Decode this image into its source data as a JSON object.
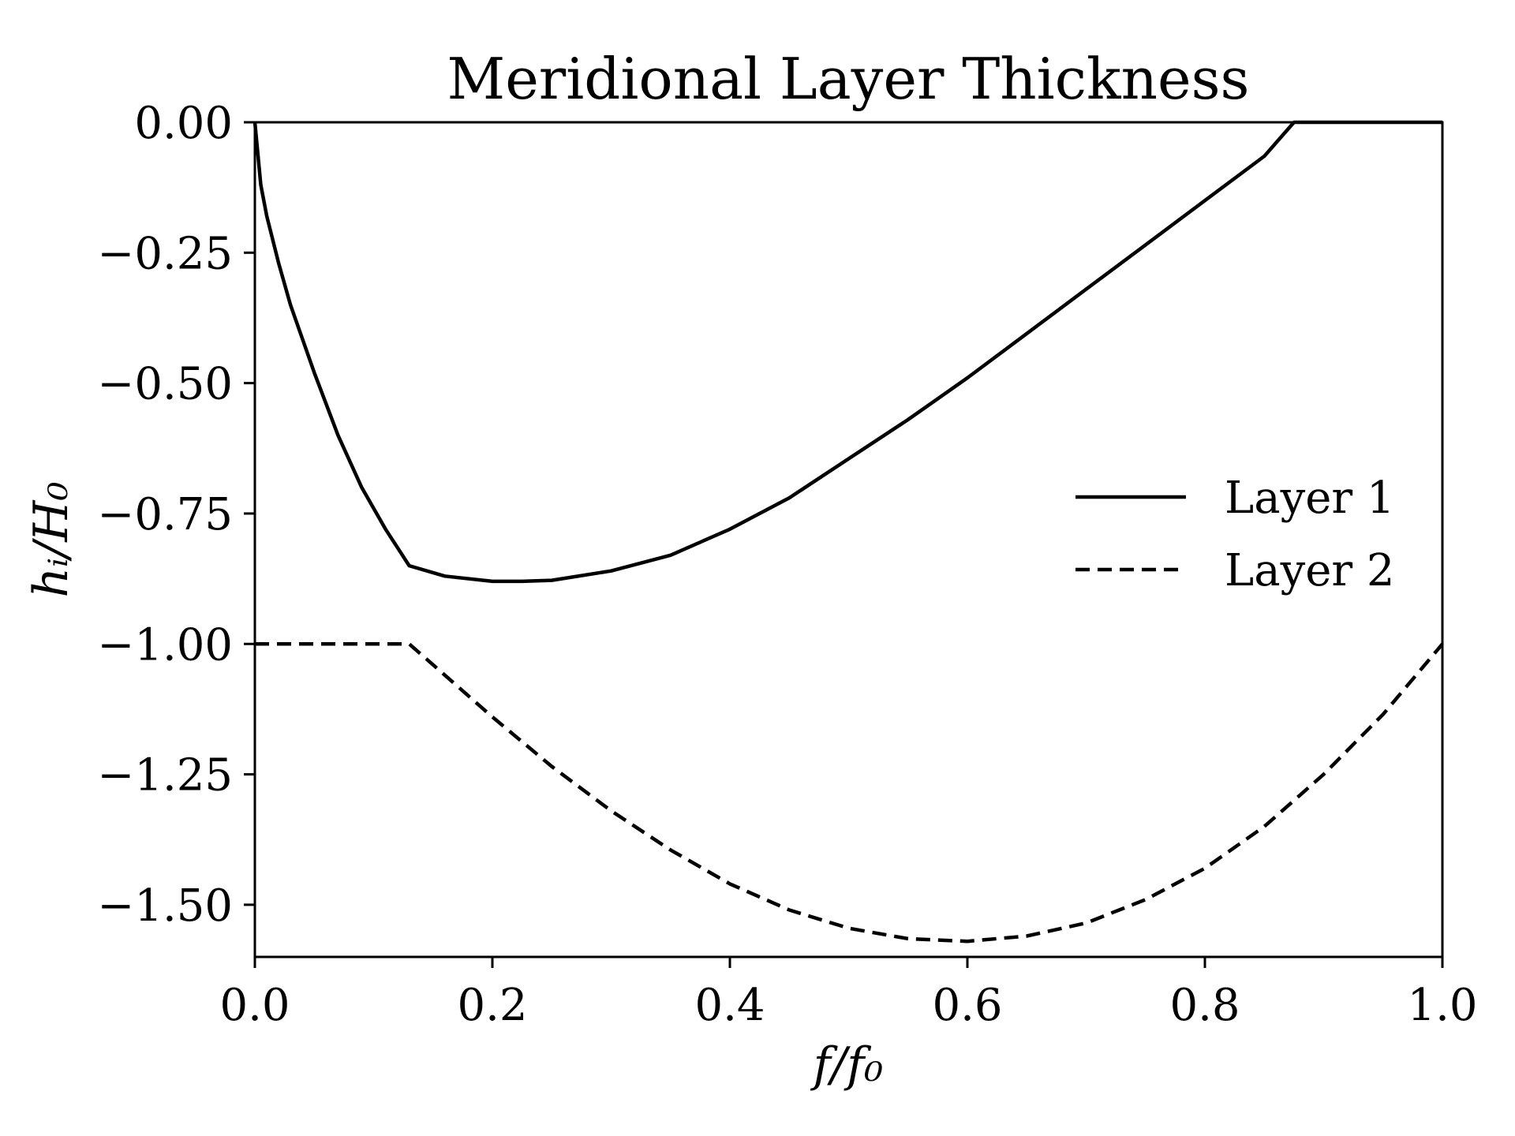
{
  "chart_data": {
    "type": "line",
    "title": "Meridional Layer Thickness",
    "xlabel": "f/f₀",
    "ylabel": "hᵢ/H₀",
    "xlim": [
      0.0,
      1.0
    ],
    "ylim": [
      -1.6,
      0.0
    ],
    "xticks": [
      0.0,
      0.2,
      0.4,
      0.6,
      0.8,
      1.0
    ],
    "xtick_labels": [
      "0.0",
      "0.2",
      "0.4",
      "0.6",
      "0.8",
      "1.0"
    ],
    "yticks": [
      0.0,
      -0.25,
      -0.5,
      -0.75,
      -1.0,
      -1.25,
      -1.5
    ],
    "ytick_labels": [
      "0.00",
      "−0.25",
      "−0.50",
      "−0.75",
      "−1.00",
      "−1.25",
      "−1.50"
    ],
    "grid": false,
    "legend_position": "center-right",
    "series": [
      {
        "name": "Layer 1",
        "style": "solid",
        "color": "#000000",
        "x": [
          0.0,
          0.005,
          0.01,
          0.02,
          0.03,
          0.05,
          0.07,
          0.09,
          0.11,
          0.13,
          0.16,
          0.2,
          0.225,
          0.25,
          0.3,
          0.35,
          0.4,
          0.45,
          0.5,
          0.55,
          0.6,
          0.65,
          0.7,
          0.75,
          0.8,
          0.85,
          0.875,
          0.9,
          0.95,
          1.0
        ],
        "y": [
          0.0,
          -0.12,
          -0.18,
          -0.27,
          -0.35,
          -0.48,
          -0.6,
          -0.7,
          -0.78,
          -0.85,
          -0.87,
          -0.88,
          -0.88,
          -0.878,
          -0.86,
          -0.83,
          -0.78,
          -0.72,
          -0.645,
          -0.57,
          -0.49,
          -0.405,
          -0.32,
          -0.235,
          -0.15,
          -0.065,
          0.0,
          0.0,
          0.0,
          0.0
        ]
      },
      {
        "name": "Layer 2",
        "style": "dashed",
        "color": "#000000",
        "x": [
          0.0,
          0.05,
          0.1,
          0.13,
          0.15,
          0.2,
          0.25,
          0.3,
          0.35,
          0.4,
          0.45,
          0.5,
          0.55,
          0.6,
          0.65,
          0.7,
          0.75,
          0.8,
          0.85,
          0.9,
          0.95,
          1.0
        ],
        "y": [
          -1.0,
          -1.0,
          -1.0,
          -1.0,
          -1.04,
          -1.14,
          -1.235,
          -1.32,
          -1.395,
          -1.46,
          -1.51,
          -1.545,
          -1.565,
          -1.57,
          -1.56,
          -1.535,
          -1.49,
          -1.43,
          -1.35,
          -1.25,
          -1.135,
          -1.0
        ]
      }
    ]
  }
}
